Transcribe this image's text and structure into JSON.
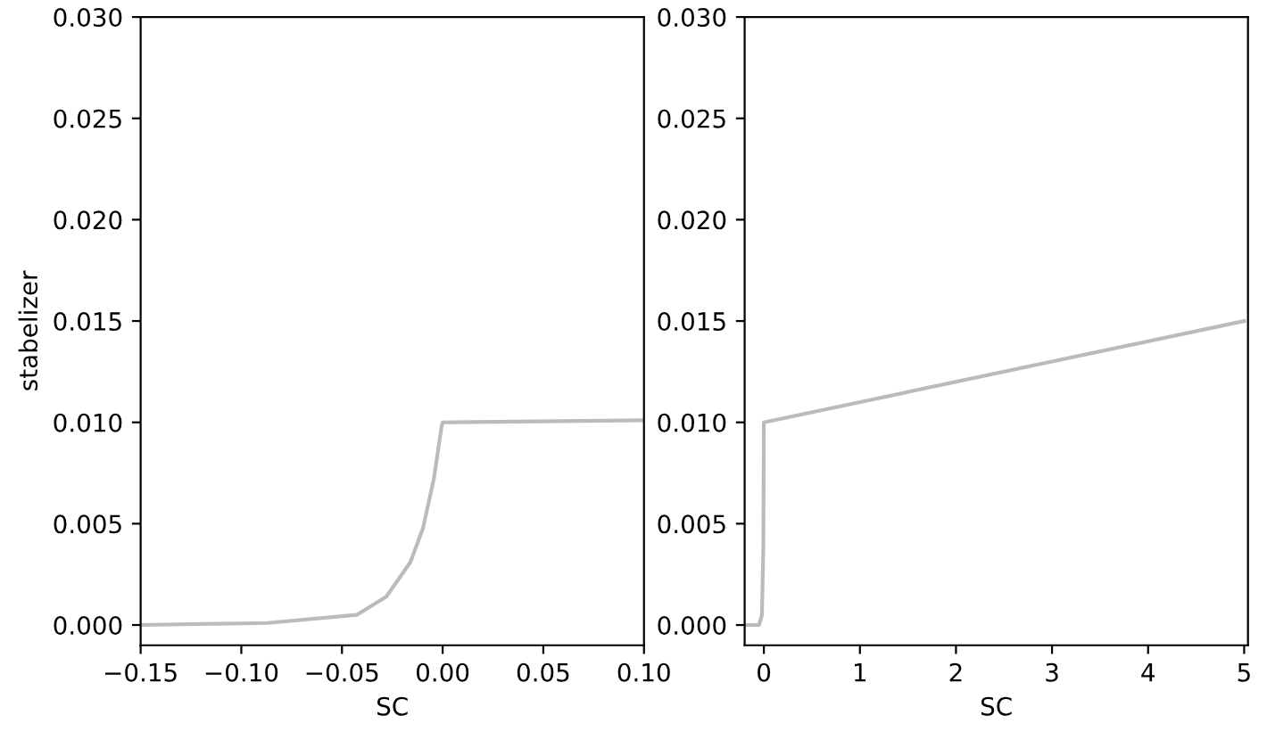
{
  "chart_data": [
    {
      "type": "line",
      "xlabel": "SC",
      "ylabel": "stabelizer",
      "color": "#bbbbbb",
      "x": [
        -0.15,
        -0.087,
        -0.0427,
        -0.028,
        -0.016,
        -0.0097,
        -0.0044,
        -0.0005,
        0,
        0.1
      ],
      "values": [
        0,
        0.0001,
        0.0005,
        0.0014,
        0.0031,
        0.0048,
        0.0072,
        0.0098,
        0.01,
        0.0101
      ],
      "xlim": [
        -0.15,
        0.1
      ],
      "xticks": [
        {
          "value": -0.15,
          "label": "−0.15"
        },
        {
          "value": -0.1,
          "label": "−0.10"
        },
        {
          "value": -0.05,
          "label": "−0.05"
        },
        {
          "value": 0,
          "label": "0.00"
        },
        {
          "value": 0.05,
          "label": "0.05"
        },
        {
          "value": 0.1,
          "label": "0.10"
        }
      ],
      "ylim": [
        -0.001,
        0.03
      ],
      "yticks": [
        {
          "value": 0,
          "label": "0.000"
        },
        {
          "value": 0.005,
          "label": "0.005"
        },
        {
          "value": 0.01,
          "label": "0.010"
        },
        {
          "value": 0.015,
          "label": "0.015"
        },
        {
          "value": 0.02,
          "label": "0.020"
        },
        {
          "value": 0.025,
          "label": "0.025"
        },
        {
          "value": 0.03,
          "label": "0.030"
        }
      ]
    },
    {
      "type": "line",
      "xlabel": "SC",
      "color": "#bbbbbb",
      "x": [
        -0.2,
        -0.05,
        -0.02,
        -0.005,
        0,
        5
      ],
      "values": [
        0,
        0,
        0.0005,
        0.004,
        0.01,
        0.015
      ],
      "xlim": [
        -0.2,
        5.04
      ],
      "xticks": [
        0,
        1,
        2,
        3,
        4,
        5
      ],
      "ylim": [
        -0.001,
        0.03
      ],
      "yticks": [
        {
          "value": 0,
          "label": "0.000"
        },
        {
          "value": 0.005,
          "label": "0.005"
        },
        {
          "value": 0.01,
          "label": "0.010"
        },
        {
          "value": 0.015,
          "label": "0.015"
        },
        {
          "value": 0.02,
          "label": "0.020"
        },
        {
          "value": 0.025,
          "label": "0.025"
        },
        {
          "value": 0.03,
          "label": "0.030"
        }
      ]
    }
  ]
}
